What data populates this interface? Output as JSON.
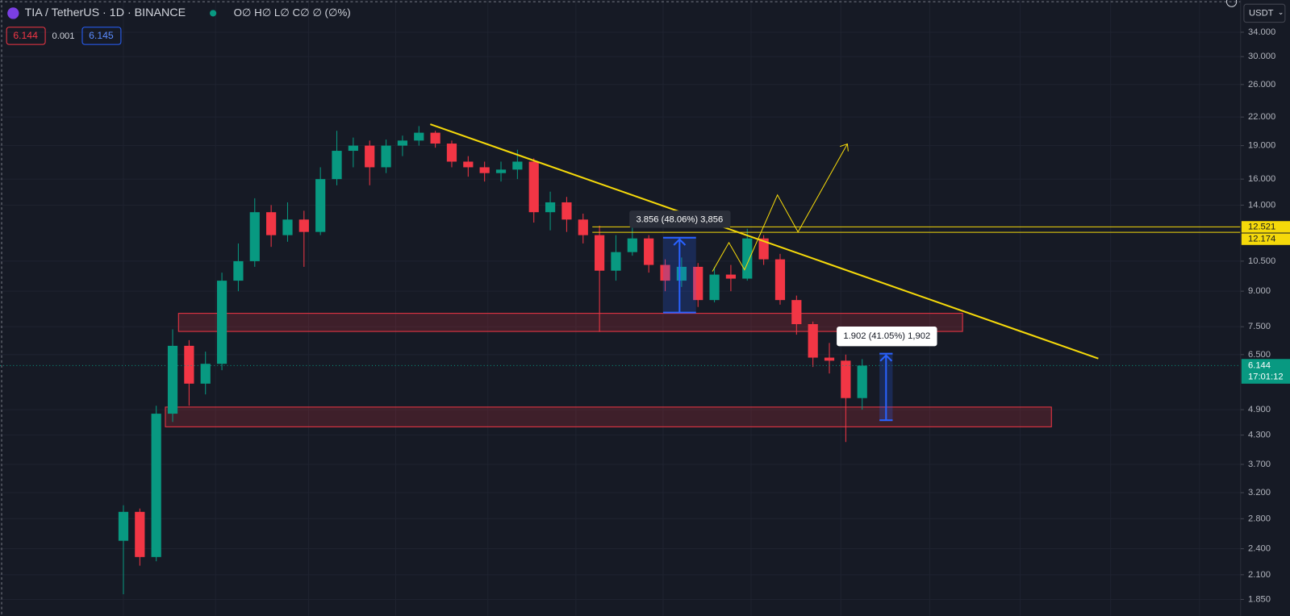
{
  "header": {
    "symbol": "TIA / TetherUS · 1D · BINANCE",
    "ohlc": "O∅ H∅ L∅ C∅ ∅ (∅%)",
    "bid": "6.144",
    "spread": "0.001",
    "ask": "6.145",
    "currency": "USDT"
  },
  "chart_data": {
    "type": "candlestick",
    "log_scale": true,
    "grid": true,
    "up_color": "#089981",
    "down_color": "#f23645",
    "open": [
      2.5,
      2.9,
      2.3,
      4.8,
      6.8,
      5.6,
      6.2,
      9.5,
      10.5,
      13.5,
      12.0,
      13.0,
      12.2,
      16,
      18.5,
      19,
      17,
      19,
      19.5,
      20.3,
      19.2,
      17.5,
      17,
      16.5,
      16.8,
      17.5,
      13.5,
      14.2,
      13,
      12,
      10,
      11,
      11.8,
      10.3,
      9.5,
      10.2,
      8.6,
      9.8,
      9.6,
      11.8,
      10.6,
      8.6,
      7.6,
      6.4,
      6.3,
      5.2
    ],
    "high": [
      3.0,
      2.95,
      5.0,
      7.4,
      7.0,
      6.6,
      9.9,
      11.5,
      14.5,
      14.0,
      14.2,
      13.6,
      17,
      20.5,
      19.8,
      19.5,
      19.6,
      20,
      21,
      20.5,
      19.5,
      18,
      17.5,
      17.5,
      18.6,
      17.8,
      15,
      14.6,
      13.4,
      12.6,
      12,
      12.5,
      12,
      10.6,
      10.7,
      10.4,
      10.2,
      10.3,
      12.4,
      12,
      10.9,
      8.8,
      7.7,
      6.9,
      6.5,
      6.35
    ],
    "low": [
      1.9,
      2.2,
      2.25,
      4.6,
      5.0,
      5.3,
      6.0,
      9.0,
      10.2,
      11.3,
      11.6,
      10.2,
      12.0,
      15.5,
      17,
      15.5,
      16.5,
      18,
      19,
      18.8,
      17,
      16.2,
      15.8,
      15.8,
      16,
      12.8,
      12.3,
      12.2,
      11.5,
      7.3,
      9.5,
      10.8,
      9.9,
      9,
      9.2,
      8.3,
      8.5,
      9,
      9.5,
      10.3,
      8.4,
      7.2,
      6.1,
      5.9,
      4.15,
      4.9
    ],
    "close": [
      2.9,
      2.3,
      4.8,
      6.8,
      5.6,
      6.2,
      9.5,
      10.5,
      13.5,
      12.0,
      13.0,
      12.2,
      16,
      18.5,
      19,
      17,
      19,
      19.5,
      20.3,
      19.2,
      17.5,
      17,
      16.5,
      16.8,
      17.5,
      13.5,
      14.2,
      13,
      12,
      10,
      11,
      11.8,
      10.3,
      9.5,
      10.2,
      8.6,
      9.8,
      9.6,
      11.8,
      10.6,
      8.6,
      7.6,
      6.4,
      6.3,
      5.2,
      6.144
    ],
    "ylim": [
      1.7,
      40.1
    ],
    "yticks": [
      {
        "value": 34,
        "label": "34.000"
      },
      {
        "value": 30,
        "label": "30.000"
      },
      {
        "value": 26,
        "label": "26.000"
      },
      {
        "value": 22,
        "label": "22.000"
      },
      {
        "value": 19,
        "label": "19.000"
      },
      {
        "value": 16,
        "label": "16.000"
      },
      {
        "value": 14,
        "label": "14.000"
      },
      {
        "value": 10.5,
        "label": "10.500"
      },
      {
        "value": 9,
        "label": "9.000"
      },
      {
        "value": 7.5,
        "label": "7.500"
      },
      {
        "value": 6.5,
        "label": "6.500"
      },
      {
        "value": 4.9,
        "label": "4.900"
      },
      {
        "value": 4.3,
        "label": "4.300"
      },
      {
        "value": 3.7,
        "label": "3.700"
      },
      {
        "value": 3.2,
        "label": "3.200"
      },
      {
        "value": 2.8,
        "label": "2.800"
      },
      {
        "value": 2.4,
        "label": "2.400"
      },
      {
        "value": 2.1,
        "label": "2.100"
      },
      {
        "value": 1.85,
        "label": "1.850"
      }
    ],
    "price_lines": [
      12.521,
      12.174
    ],
    "price_line_color": "#f5d90a",
    "last_price": 6.144,
    "countdown": "17:01:12",
    "last_price_color": "#089981",
    "annotations": [
      "3.856 (48.06%) 3,856",
      "1.902 (41.05%) 1,902"
    ]
  }
}
